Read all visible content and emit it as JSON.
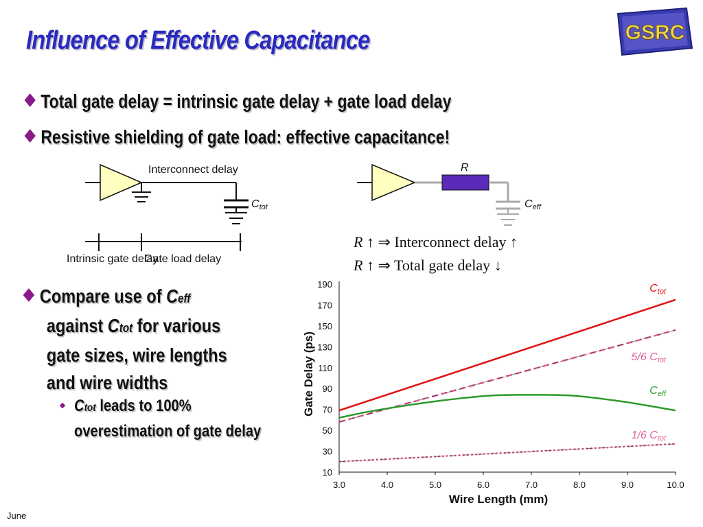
{
  "slide": {
    "title": "Influence of Effective Capacitance",
    "logo_text": "GSRC",
    "bullets": [
      "Total gate delay = intrinsic gate delay + gate load delay",
      "Resistive shielding of gate load: effective  capacitance!"
    ],
    "compare_lines": [
      "Compare use of ",
      "eff",
      "against ",
      "tot",
      " for various",
      "gate sizes, wire lengths",
      "and wire widths"
    ],
    "sub_bullet": {
      "c": "C",
      "tot": "tot",
      "line1": " leads to 100%",
      "line2": "overestimation of gate delay"
    },
    "footer": "June"
  },
  "diagram_left": {
    "interconnect_label": "Interconnect delay",
    "cap_label": "C",
    "cap_sub": "tot",
    "intrinsic_label": "Intrinsic gate delay",
    "gate_load_label": "Gate load delay"
  },
  "diagram_right": {
    "r_label": "R",
    "cap_label": "C",
    "cap_sub": "eff"
  },
  "equations": [
    {
      "r": "R",
      "up": "↑",
      "arrow": "⇒",
      "text": "Interconnect delay",
      "trail": "↑"
    },
    {
      "r": "R",
      "up": "↑",
      "arrow": "⇒",
      "text": "Total gate delay",
      "trail": "↓"
    }
  ],
  "colors": {
    "title": "#2a2abf",
    "diamond": "#8a1a8a",
    "ctot": "#e01010",
    "ceff": "#2a9a2a",
    "ratio": "#e0609a",
    "gate": "#ffffc0",
    "resistor": "#5a2ab8"
  },
  "chart_data": {
    "type": "line",
    "xlabel": "Wire Length (mm)",
    "ylabel": "Gate Delay (ps)",
    "xlim": [
      3.0,
      10.0
    ],
    "ylim": [
      10,
      190
    ],
    "x_ticks": [
      "3.0",
      "4.0",
      "5.0",
      "6.0",
      "7.0",
      "8.0",
      "9.0",
      "10.0"
    ],
    "y_ticks": [
      "190",
      "170",
      "150",
      "130",
      "110",
      "90",
      "70",
      "50",
      "30",
      "10"
    ],
    "series": [
      {
        "name": "C",
        "sub": "tot",
        "color": "#e01010",
        "dash": "",
        "x": [
          3.0,
          10.0
        ],
        "y": [
          69,
          175
        ]
      },
      {
        "name": "5/6 C",
        "sub": "tot",
        "color": "#e0609a",
        "dash": "9,5",
        "x": [
          3.0,
          10.0
        ],
        "y": [
          58,
          146
        ]
      },
      {
        "name": "C",
        "sub": "eff",
        "color": "#2a9a2a",
        "dash": "",
        "x": [
          3.0,
          3.5,
          4.0,
          5.0,
          6.0,
          6.5,
          7.0,
          7.5,
          8.0,
          9.0,
          9.5,
          10.0
        ],
        "y": [
          62,
          67,
          71,
          78,
          83,
          84,
          84,
          84,
          83,
          77,
          73,
          69
        ]
      },
      {
        "name": "1/6 C",
        "sub": "tot",
        "color": "#e0609a",
        "dash": "3,3",
        "x": [
          3.0,
          10.0
        ],
        "y": [
          20,
          37
        ]
      }
    ],
    "series_label_positions": [
      "end",
      "end",
      "end",
      "end"
    ]
  }
}
